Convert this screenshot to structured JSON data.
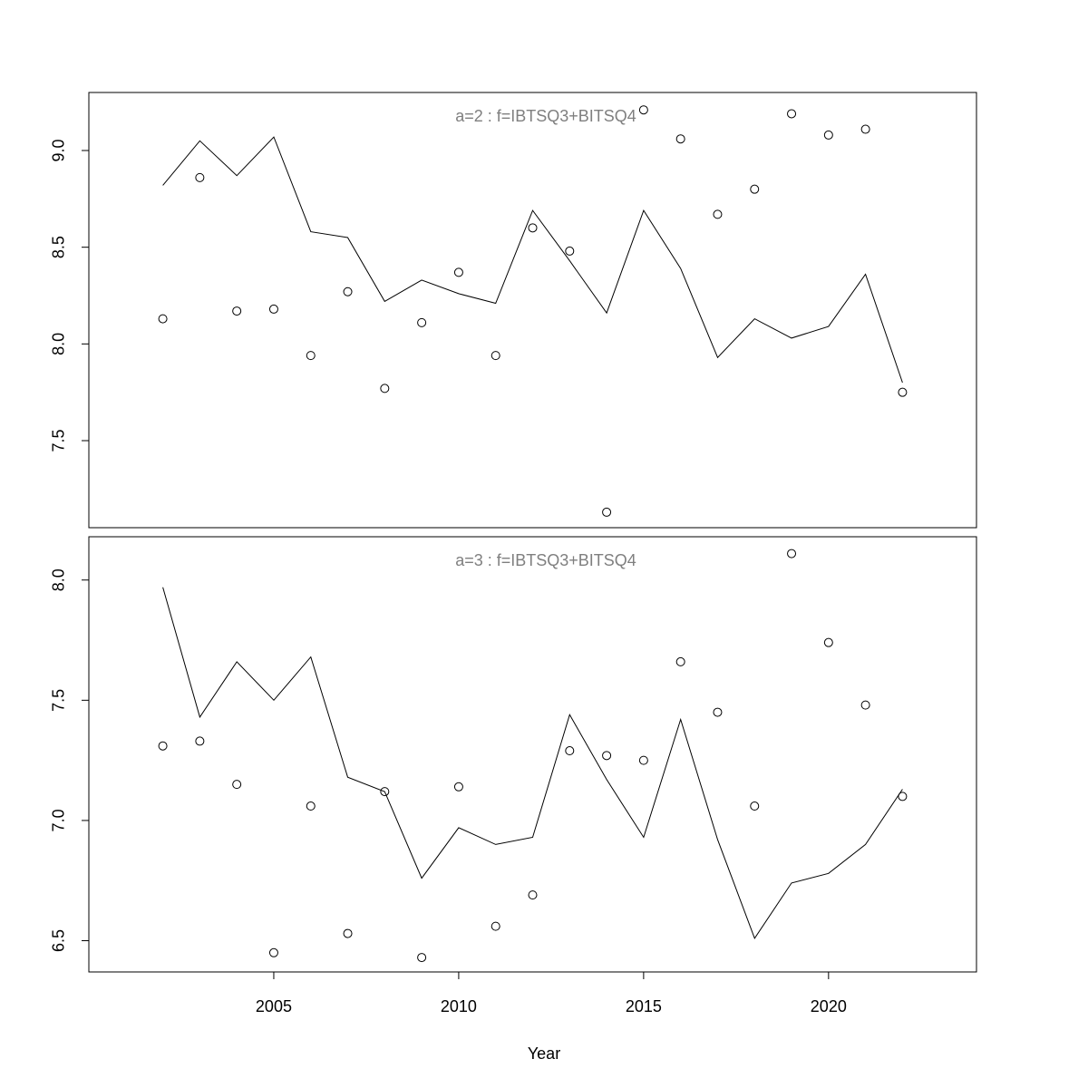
{
  "chart_data": {
    "type": "scatter",
    "xlabel": "Year",
    "xlim": [
      2000,
      2024
    ],
    "x_ticks": [
      "2005",
      "2010",
      "2015",
      "2020"
    ],
    "x": [
      2002,
      2003,
      2004,
      2005,
      2006,
      2007,
      2008,
      2009,
      2010,
      2011,
      2012,
      2013,
      2014,
      2015,
      2016,
      2017,
      2018,
      2019,
      2020,
      2021,
      2022
    ],
    "panels": [
      {
        "title": "a=2  :  f=IBTSQ3+BITSQ4",
        "ylim": [
          7.05,
          9.3
        ],
        "y_ticks": [
          "7.5",
          "8.0",
          "8.5",
          "9.0"
        ],
        "line": [
          8.82,
          9.05,
          8.87,
          9.07,
          8.58,
          8.55,
          8.22,
          8.33,
          8.26,
          8.21,
          8.69,
          8.43,
          8.16,
          8.69,
          8.39,
          7.93,
          8.13,
          8.03,
          8.09,
          8.36,
          7.8
        ],
        "points": [
          8.13,
          8.86,
          8.17,
          8.18,
          7.94,
          8.27,
          7.77,
          8.11,
          8.37,
          7.94,
          8.6,
          8.48,
          7.13,
          9.21,
          9.06,
          8.67,
          8.8,
          9.19,
          9.08,
          9.11,
          7.75
        ]
      },
      {
        "title": "a=3  :  f=IBTSQ3+BITSQ4",
        "ylim": [
          6.37,
          8.18
        ],
        "y_ticks": [
          "6.5",
          "7.0",
          "7.5",
          "8.0"
        ],
        "line": [
          7.97,
          7.43,
          7.66,
          7.5,
          7.68,
          7.18,
          7.12,
          6.76,
          6.97,
          6.9,
          6.93,
          7.44,
          7.17,
          6.93,
          7.42,
          6.92,
          6.51,
          6.74,
          6.78,
          6.9,
          7.13
        ],
        "points": [
          7.31,
          7.33,
          7.15,
          6.45,
          7.06,
          6.53,
          7.12,
          6.43,
          7.14,
          6.56,
          6.69,
          7.29,
          7.27,
          7.25,
          7.66,
          7.45,
          7.06,
          8.11,
          7.74,
          7.48,
          7.1
        ]
      }
    ]
  }
}
